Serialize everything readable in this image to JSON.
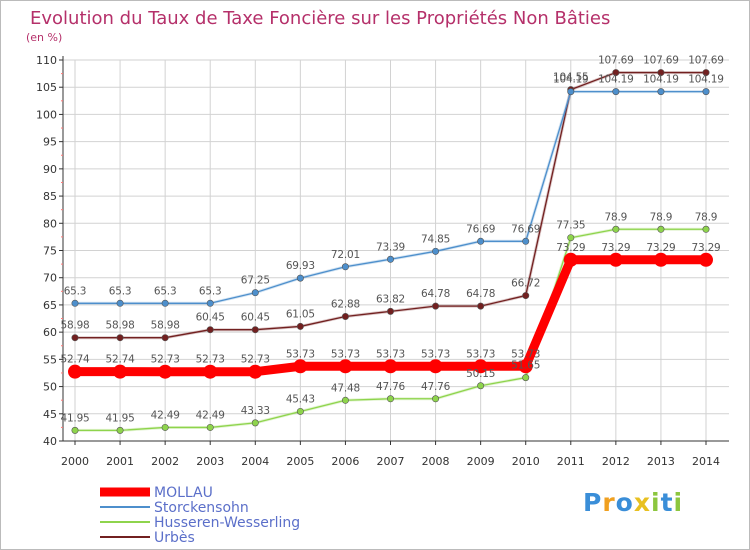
{
  "chart_data": {
    "type": "line",
    "title": "Evolution du Taux de Taxe Foncière sur les Propriétés Non Bâties",
    "ylabel": "(en %)",
    "xlabel": "",
    "ylim": [
      40,
      110
    ],
    "yticks": [
      40,
      45,
      50,
      55,
      60,
      65,
      70,
      75,
      80,
      85,
      90,
      95,
      100,
      105,
      110
    ],
    "categories": [
      "2000",
      "2001",
      "2002",
      "2003",
      "2004",
      "2005",
      "2006",
      "2007",
      "2008",
      "2009",
      "2010",
      "2011",
      "2012",
      "2013",
      "2014"
    ],
    "series": [
      {
        "name": "Urbès",
        "color": "#722020",
        "values": [
          58.98,
          58.98,
          58.98,
          60.45,
          60.45,
          61.05,
          62.88,
          63.82,
          64.78,
          64.78,
          66.72,
          104.55,
          107.69,
          107.69,
          107.69
        ],
        "labels": [
          "58.98",
          "58.98",
          "58.98",
          "60.45",
          "60.45",
          "61.05",
          "62.88",
          "63.82",
          "64.78",
          "64.78",
          "66.72",
          "104.55",
          "107.69",
          "107.69",
          "107.69"
        ]
      },
      {
        "name": "Storckensohn",
        "color": "#4d8fcc",
        "values": [
          65.3,
          65.3,
          65.3,
          65.3,
          67.25,
          69.93,
          72.01,
          73.39,
          74.85,
          76.69,
          76.69,
          104.19,
          104.19,
          104.19,
          104.19
        ],
        "labels": [
          "65.3",
          "65.3",
          "65.3",
          "65.3",
          "67.25",
          "69.93",
          "72.01",
          "73.39",
          "74.85",
          "76.69",
          "76.69",
          "104.19",
          "104.19",
          "104.19",
          "104.19"
        ]
      },
      {
        "name": "Husseren-Wesserling",
        "color": "#8ed44c",
        "values": [
          41.95,
          41.95,
          42.49,
          42.49,
          43.33,
          45.43,
          47.48,
          47.76,
          47.76,
          50.15,
          51.65,
          77.35,
          78.9,
          78.9,
          78.9
        ],
        "labels": [
          "41.95",
          "41.95",
          "42.49",
          "42.49",
          "43.33",
          "45.43",
          "47.48",
          "47.76",
          "47.76",
          "50.15",
          "51.65",
          "77.35",
          "78.9",
          "78.9",
          "78.9"
        ]
      },
      {
        "name": "MOLLAU",
        "color": "#ff0000",
        "values": [
          52.74,
          52.74,
          52.73,
          52.73,
          52.73,
          53.73,
          53.73,
          53.73,
          53.73,
          53.73,
          53.73,
          73.29,
          73.29,
          73.29,
          73.29
        ],
        "labels": [
          "52.74",
          "52.74",
          "52.73",
          "52.73",
          "52.73",
          "53.73",
          "53.73",
          "53.73",
          "53.73",
          "53.73",
          "53.73",
          "73.29",
          "73.29",
          "73.29",
          "73.29"
        ]
      }
    ],
    "legend": {
      "placement": "bottom-left",
      "order": [
        "MOLLAU",
        "Storckensohn",
        "Husseren-Wesserling",
        "Urbès"
      ]
    },
    "grid": true
  },
  "theme": {
    "title_color": "#b5306a",
    "legend_text_color": "#5b6fc9",
    "grid_color": "#d2d2d2",
    "axis_color": "#333333",
    "minor_tick_color": "#ff7777"
  },
  "logo": {
    "letters": [
      "P",
      "r",
      "o",
      "x",
      "i",
      "t",
      "i"
    ],
    "colors": [
      "#3a8ed8",
      "#f0a020",
      "#3a8ed8",
      "#e8c020",
      "#8cc63e",
      "#3a8ed8",
      "#8cc63e"
    ]
  }
}
